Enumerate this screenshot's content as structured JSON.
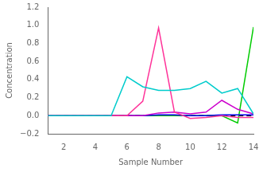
{
  "chart_data": {
    "type": "line",
    "x": [
      1,
      2,
      3,
      4,
      5,
      6,
      7,
      8,
      9,
      10,
      11,
      12,
      13,
      14
    ],
    "series": [
      {
        "color": "#00CCCC",
        "values": [
          0.0,
          0.0,
          0.0,
          0.0,
          0.0,
          0.43,
          0.32,
          0.28,
          0.28,
          0.3,
          0.38,
          0.25,
          0.3,
          0.02
        ]
      },
      {
        "color": "#FF3399",
        "values": [
          0.0,
          0.0,
          0.0,
          0.0,
          0.0,
          0.0,
          0.16,
          0.97,
          0.04,
          -0.03,
          -0.02,
          0.0,
          -0.02,
          -0.02
        ]
      },
      {
        "color": "#CC00CC",
        "values": [
          0.0,
          0.0,
          0.0,
          0.0,
          0.0,
          0.0,
          0.0,
          0.03,
          0.04,
          0.02,
          0.04,
          0.17,
          0.07,
          0.02
        ]
      },
      {
        "color": "#0000EE",
        "values": [
          0.0,
          0.0,
          0.0,
          0.0,
          0.0,
          0.0,
          0.0,
          0.01,
          0.01,
          0.0,
          0.0,
          0.01,
          0.01,
          0.01
        ]
      },
      {
        "color": "#00CC00",
        "values": [
          0.0,
          0.0,
          0.0,
          0.0,
          0.0,
          0.0,
          0.0,
          0.0,
          0.0,
          0.0,
          0.0,
          0.0,
          -0.08,
          0.98
        ]
      },
      {
        "color": "#000000",
        "line_style": "dashed",
        "values": [
          0.0,
          0.0,
          0.0,
          0.0,
          0.0,
          0.0,
          0.0,
          0.0,
          0.0,
          0.0,
          0.0,
          0.0,
          0.0,
          0.0
        ]
      }
    ],
    "xlim": [
      1,
      14
    ],
    "ylim": [
      -0.2,
      1.2
    ],
    "xlabel": "Sample Number",
    "ylabel": "Concentration",
    "xticks": [
      2,
      4,
      6,
      8,
      10,
      12,
      14
    ],
    "yticks": [
      {
        "value": -0.2,
        "label": "−0.2"
      },
      {
        "value": 0,
        "label": "0.0"
      },
      0.2,
      0.4,
      0.6,
      0.8,
      {
        "value": 1,
        "label": "1.0"
      },
      1.2
    ],
    "grid": false
  }
}
